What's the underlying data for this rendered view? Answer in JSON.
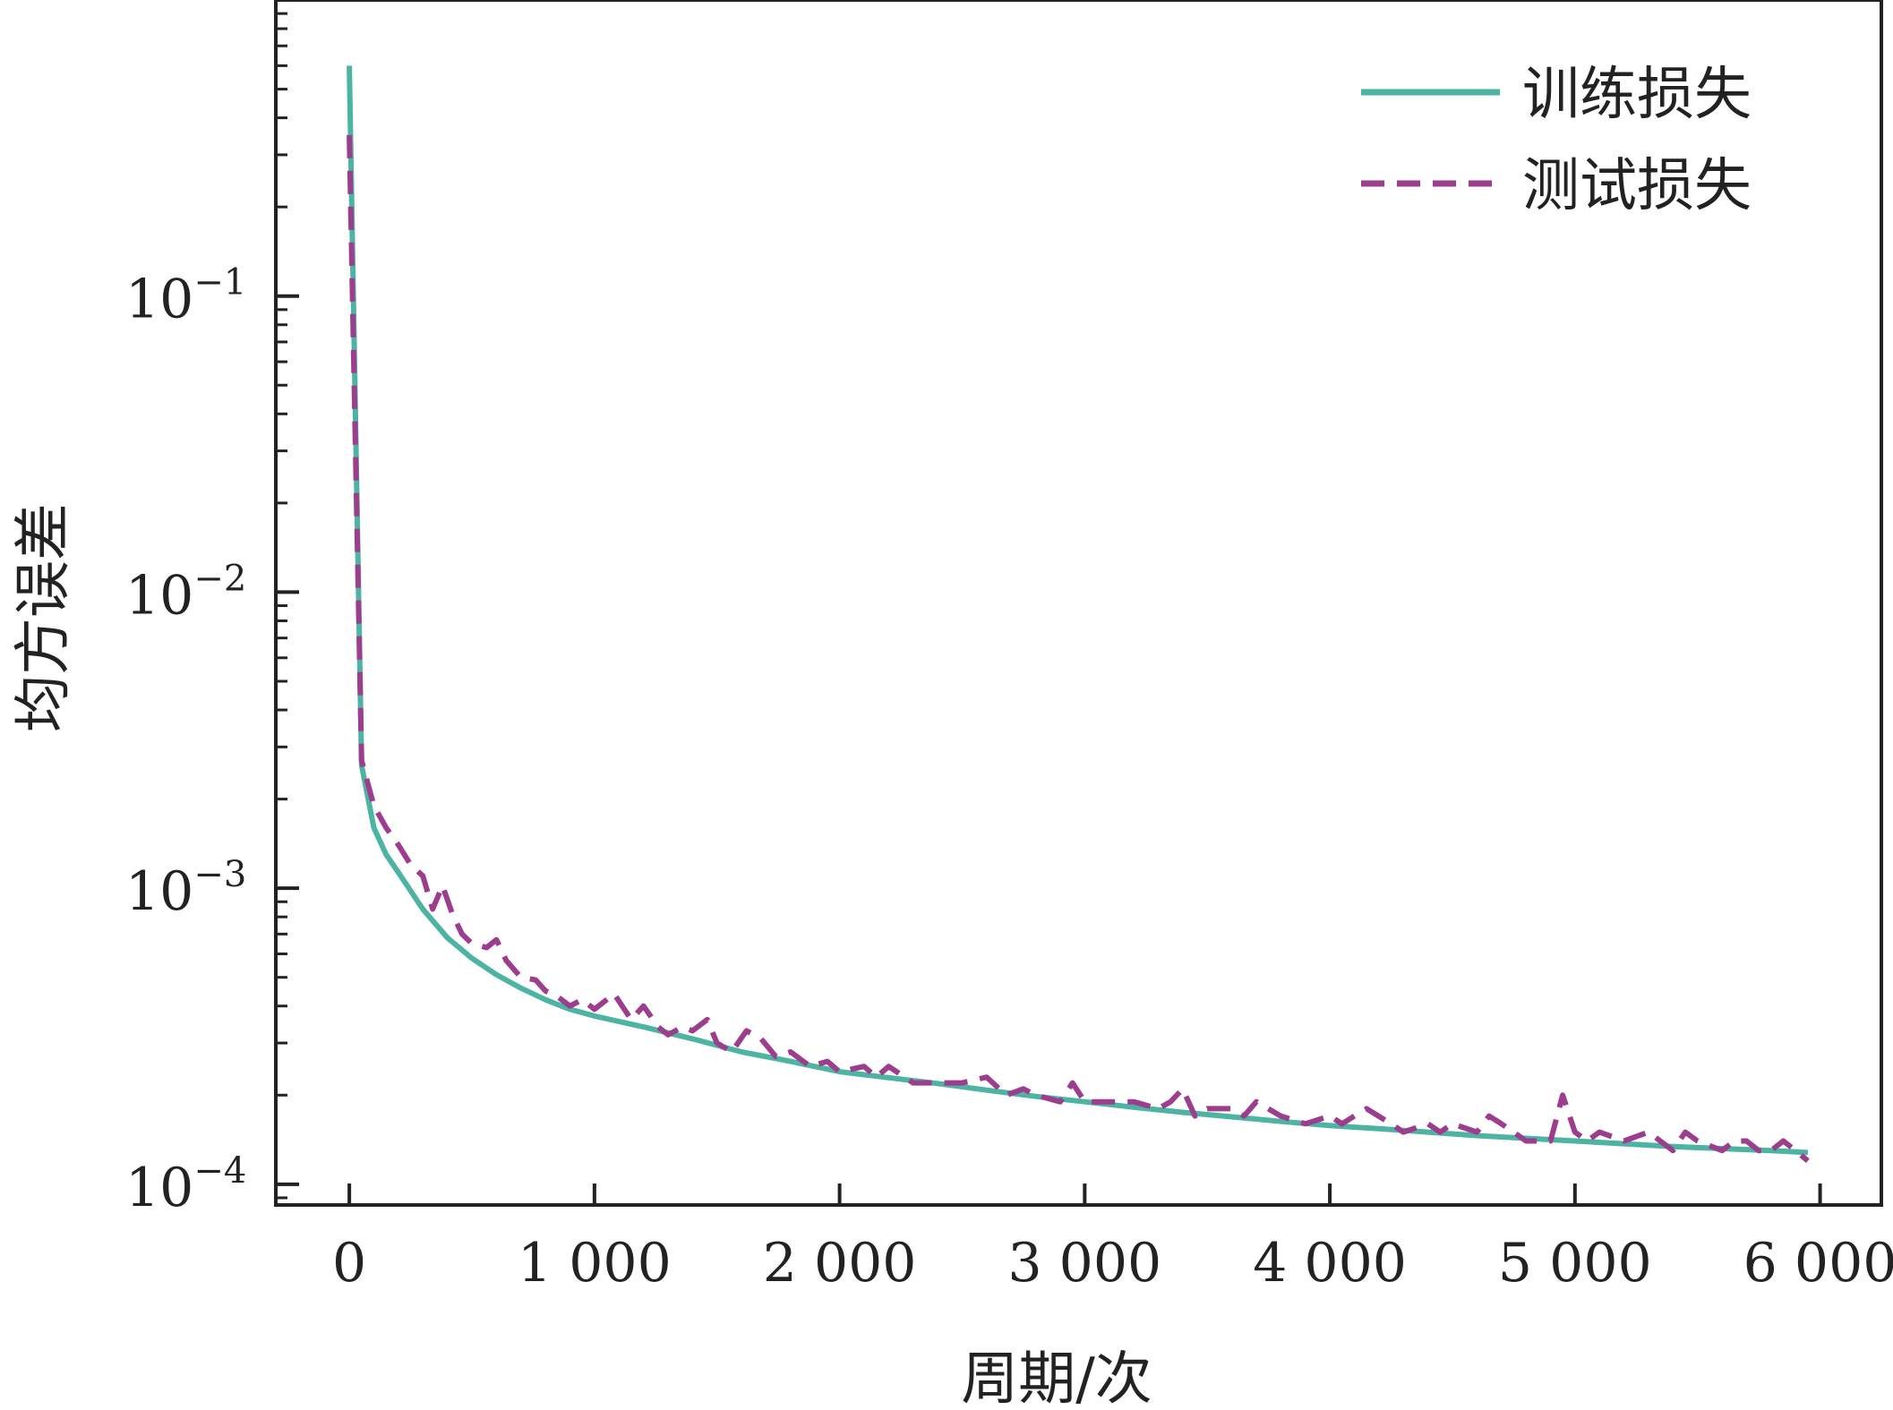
{
  "chart_data": {
    "type": "line",
    "xlabel": "周期/次",
    "ylabel": "均方误差",
    "xlim": [
      -300,
      6250
    ],
    "ylim_log10": [
      -4.07,
      0.0
    ],
    "yscale": "log",
    "grid": false,
    "legend_position": "top-right",
    "x_ticks": [
      0,
      1000,
      2000,
      3000,
      4000,
      5000,
      6000
    ],
    "x_tick_labels": [
      "0",
      "1 000",
      "2 000",
      "3 000",
      "4 000",
      "5 000",
      "6 000"
    ],
    "y_ticks": [
      {
        "value": 0.1,
        "base": "10",
        "exp": "−1"
      },
      {
        "value": 0.01,
        "base": "10",
        "exp": "−2"
      },
      {
        "value": 0.001,
        "base": "10",
        "exp": "−3"
      },
      {
        "value": 0.0001,
        "base": "10",
        "exp": "−4"
      }
    ],
    "series": [
      {
        "name": "训练损失",
        "color": "#4db3a2",
        "style": "solid",
        "x": [
          0,
          50,
          100,
          150,
          200,
          300,
          400,
          500,
          600,
          700,
          800,
          900,
          1000,
          1200,
          1400,
          1600,
          1800,
          2000,
          2200,
          2400,
          2600,
          2800,
          3000,
          3200,
          3400,
          3600,
          3800,
          4000,
          4200,
          4400,
          4600,
          4800,
          5000,
          5200,
          5400,
          5600,
          5800,
          5950
        ],
        "y": [
          0.6,
          0.0026,
          0.0016,
          0.0013,
          0.00113,
          0.00085,
          0.00068,
          0.00058,
          0.00051,
          0.00046,
          0.00042,
          0.00039,
          0.00037,
          0.00034,
          0.00031,
          0.00028,
          0.00026,
          0.00024,
          0.000229,
          0.000219,
          0.000208,
          0.000198,
          0.00019,
          0.000182,
          0.000175,
          0.000169,
          0.000163,
          0.000158,
          0.000154,
          0.00015,
          0.000146,
          0.000143,
          0.00014,
          0.000137,
          0.000134,
          0.000132,
          0.00013,
          0.000128
        ]
      },
      {
        "name": "测试损失",
        "color": "#9c3d8e",
        "style": "dashed",
        "x": [
          0,
          50,
          100,
          150,
          200,
          250,
          300,
          340,
          380,
          420,
          460,
          500,
          560,
          600,
          640,
          700,
          760,
          800,
          850,
          900,
          950,
          1000,
          1080,
          1150,
          1200,
          1260,
          1300,
          1360,
          1400,
          1460,
          1500,
          1560,
          1620,
          1680,
          1740,
          1800,
          1880,
          1950,
          2000,
          2100,
          2150,
          2200,
          2300,
          2400,
          2500,
          2600,
          2680,
          2750,
          2800,
          2900,
          2950,
          3000,
          3100,
          3200,
          3300,
          3350,
          3400,
          3450,
          3500,
          3600,
          3650,
          3700,
          3800,
          3900,
          4000,
          4050,
          4100,
          4150,
          4250,
          4300,
          4400,
          4450,
          4500,
          4600,
          4650,
          4700,
          4750,
          4800,
          4900,
          4950,
          5000,
          5050,
          5100,
          5200,
          5300,
          5400,
          5450,
          5500,
          5600,
          5650,
          5700,
          5750,
          5800,
          5850,
          5900,
          5950
        ],
        "y": [
          0.35,
          0.0027,
          0.0019,
          0.0016,
          0.0014,
          0.0012,
          0.0011,
          0.00085,
          0.00102,
          0.00082,
          0.0007,
          0.00065,
          0.00063,
          0.00067,
          0.00057,
          0.0005,
          0.00049,
          0.00045,
          0.00043,
          0.0004,
          0.00042,
          0.00039,
          0.00044,
          0.00036,
          0.0004,
          0.00034,
          0.00032,
          0.00034,
          0.00033,
          0.00036,
          0.0003,
          0.00028,
          0.00033,
          0.00031,
          0.00027,
          0.00028,
          0.00025,
          0.00026,
          0.00024,
          0.00025,
          0.00023,
          0.00025,
          0.00022,
          0.00022,
          0.00022,
          0.00023,
          0.0002,
          0.00021,
          0.0002,
          0.00019,
          0.00022,
          0.00019,
          0.00019,
          0.00019,
          0.00018,
          0.00019,
          0.00021,
          0.00017,
          0.00018,
          0.00018,
          0.00017,
          0.00019,
          0.00017,
          0.00016,
          0.00017,
          0.00016,
          0.00017,
          0.00018,
          0.00016,
          0.00015,
          0.00016,
          0.00015,
          0.00016,
          0.00015,
          0.00017,
          0.00016,
          0.00015,
          0.00014,
          0.00014,
          0.0002,
          0.00015,
          0.00014,
          0.00015,
          0.00014,
          0.00015,
          0.00013,
          0.00015,
          0.00014,
          0.00013,
          0.00014,
          0.00014,
          0.00013,
          0.00013,
          0.00014,
          0.00013,
          0.00012
        ]
      }
    ]
  }
}
